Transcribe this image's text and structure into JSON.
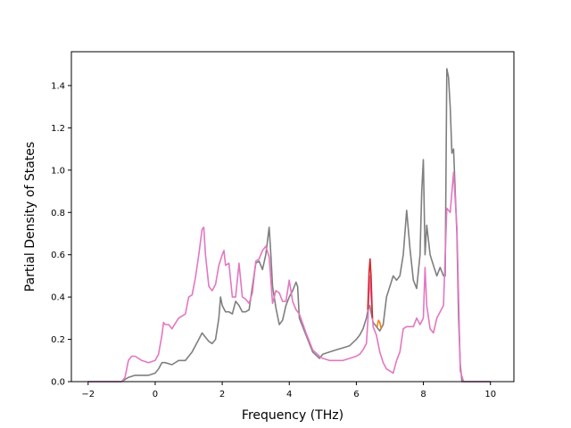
{
  "chart_data": {
    "type": "line",
    "title": "",
    "xlabel": "Frequency (THz)",
    "ylabel": "Partial Density of States",
    "xlim": [
      -2.5,
      10.7
    ],
    "ylim": [
      0,
      1.56
    ],
    "xticks": [
      -2,
      0,
      2,
      4,
      6,
      8,
      10
    ],
    "yticks": [
      0.0,
      0.2,
      0.4,
      0.6,
      0.8,
      1.0,
      1.2,
      1.4
    ],
    "xtick_labels": [
      "−2",
      "0",
      "2",
      "4",
      "6",
      "8",
      "10"
    ],
    "ytick_labels": [
      "0.0",
      "0.2",
      "0.4",
      "0.6",
      "0.8",
      "1.0",
      "1.2",
      "1.4"
    ],
    "grid": false,
    "legend": "none",
    "series": [
      {
        "color": "#7f7f7f",
        "x": [
          -2.0,
          -1.0,
          -0.9,
          -0.8,
          -0.6,
          -0.4,
          -0.2,
          0.0,
          0.1,
          0.2,
          0.3,
          0.5,
          0.7,
          0.9,
          1.1,
          1.2,
          1.3,
          1.4,
          1.5,
          1.6,
          1.7,
          1.8,
          1.9,
          1.95,
          2.0,
          2.1,
          2.2,
          2.3,
          2.4,
          2.5,
          2.6,
          2.7,
          2.8,
          2.9,
          3.0,
          3.1,
          3.2,
          3.3,
          3.4,
          3.45,
          3.5,
          3.6,
          3.7,
          3.8,
          3.9,
          4.0,
          4.1,
          4.2,
          4.25,
          4.3,
          4.5,
          4.7,
          4.9,
          5.0,
          5.2,
          5.4,
          5.6,
          5.8,
          6.0,
          6.1,
          6.2,
          6.3,
          6.35,
          6.4,
          6.5,
          6.6,
          6.7,
          6.8,
          6.9,
          7.0,
          7.1,
          7.2,
          7.3,
          7.4,
          7.5,
          7.6,
          7.7,
          7.8,
          7.9,
          7.95,
          8.0,
          8.05,
          8.1,
          8.2,
          8.3,
          8.4,
          8.5,
          8.6,
          8.65,
          8.7,
          8.75,
          8.8,
          8.85,
          8.9,
          8.95,
          9.0,
          9.05,
          9.1,
          9.15,
          9.2,
          10.0
        ],
        "y": [
          0.0,
          0.0,
          0.01,
          0.02,
          0.03,
          0.03,
          0.03,
          0.04,
          0.06,
          0.09,
          0.09,
          0.08,
          0.1,
          0.1,
          0.14,
          0.17,
          0.2,
          0.23,
          0.21,
          0.19,
          0.18,
          0.2,
          0.3,
          0.4,
          0.36,
          0.33,
          0.33,
          0.32,
          0.38,
          0.36,
          0.33,
          0.33,
          0.34,
          0.45,
          0.56,
          0.57,
          0.53,
          0.6,
          0.73,
          0.6,
          0.45,
          0.35,
          0.27,
          0.29,
          0.36,
          0.4,
          0.43,
          0.47,
          0.45,
          0.3,
          0.22,
          0.14,
          0.11,
          0.13,
          0.14,
          0.15,
          0.16,
          0.17,
          0.2,
          0.22,
          0.25,
          0.3,
          0.34,
          0.36,
          0.28,
          0.26,
          0.24,
          0.27,
          0.4,
          0.45,
          0.5,
          0.48,
          0.5,
          0.6,
          0.81,
          0.63,
          0.48,
          0.44,
          0.6,
          0.9,
          1.05,
          0.6,
          0.74,
          0.6,
          0.55,
          0.5,
          0.54,
          0.5,
          0.5,
          1.48,
          1.44,
          1.3,
          1.08,
          1.1,
          0.9,
          0.7,
          0.3,
          0.08,
          0.0,
          0.0,
          0.0
        ]
      },
      {
        "color": "#e377c2",
        "x": [
          -2.0,
          -1.0,
          -0.9,
          -0.8,
          -0.7,
          -0.6,
          -0.4,
          -0.2,
          0.0,
          0.1,
          0.2,
          0.25,
          0.3,
          0.4,
          0.5,
          0.7,
          0.9,
          1.0,
          1.1,
          1.2,
          1.3,
          1.4,
          1.45,
          1.5,
          1.6,
          1.7,
          1.8,
          1.9,
          2.0,
          2.05,
          2.1,
          2.2,
          2.25,
          2.3,
          2.4,
          2.5,
          2.6,
          2.7,
          2.8,
          2.9,
          3.0,
          3.1,
          3.2,
          3.3,
          3.4,
          3.5,
          3.6,
          3.7,
          3.8,
          3.9,
          4.0,
          4.1,
          4.2,
          4.3,
          4.5,
          4.7,
          4.9,
          5.0,
          5.2,
          5.4,
          5.6,
          5.8,
          6.0,
          6.1,
          6.2,
          6.3,
          6.35,
          6.4,
          6.5,
          6.6,
          6.7,
          6.8,
          6.9,
          7.0,
          7.1,
          7.2,
          7.3,
          7.4,
          7.5,
          7.6,
          7.7,
          7.8,
          7.9,
          8.0,
          8.05,
          8.1,
          8.2,
          8.3,
          8.4,
          8.5,
          8.6,
          8.7,
          8.8,
          8.9,
          9.0,
          9.05,
          9.1,
          9.2,
          10.0
        ],
        "y": [
          0.0,
          0.0,
          0.02,
          0.1,
          0.12,
          0.12,
          0.1,
          0.09,
          0.1,
          0.13,
          0.22,
          0.28,
          0.27,
          0.27,
          0.25,
          0.3,
          0.32,
          0.4,
          0.41,
          0.49,
          0.6,
          0.72,
          0.73,
          0.6,
          0.45,
          0.43,
          0.46,
          0.55,
          0.6,
          0.62,
          0.55,
          0.56,
          0.48,
          0.4,
          0.4,
          0.56,
          0.4,
          0.39,
          0.37,
          0.42,
          0.57,
          0.58,
          0.62,
          0.64,
          0.59,
          0.37,
          0.43,
          0.42,
          0.38,
          0.38,
          0.48,
          0.38,
          0.34,
          0.32,
          0.23,
          0.15,
          0.12,
          0.11,
          0.1,
          0.1,
          0.1,
          0.11,
          0.12,
          0.13,
          0.15,
          0.18,
          0.3,
          0.5,
          0.26,
          0.22,
          0.14,
          0.09,
          0.06,
          0.05,
          0.04,
          0.1,
          0.14,
          0.25,
          0.26,
          0.26,
          0.26,
          0.3,
          0.27,
          0.3,
          0.54,
          0.36,
          0.25,
          0.23,
          0.3,
          0.33,
          0.36,
          0.82,
          0.8,
          0.99,
          0.73,
          0.4,
          0.05,
          0.0,
          0.0
        ]
      },
      {
        "color": "#d62728",
        "x": [
          6.34,
          6.38,
          6.41,
          6.44,
          6.48
        ],
        "y": [
          0.34,
          0.52,
          0.58,
          0.5,
          0.3
        ]
      },
      {
        "color": "#ff7f0e",
        "x": [
          6.62,
          6.66,
          6.7,
          6.74
        ],
        "y": [
          0.26,
          0.29,
          0.28,
          0.25
        ]
      }
    ]
  }
}
